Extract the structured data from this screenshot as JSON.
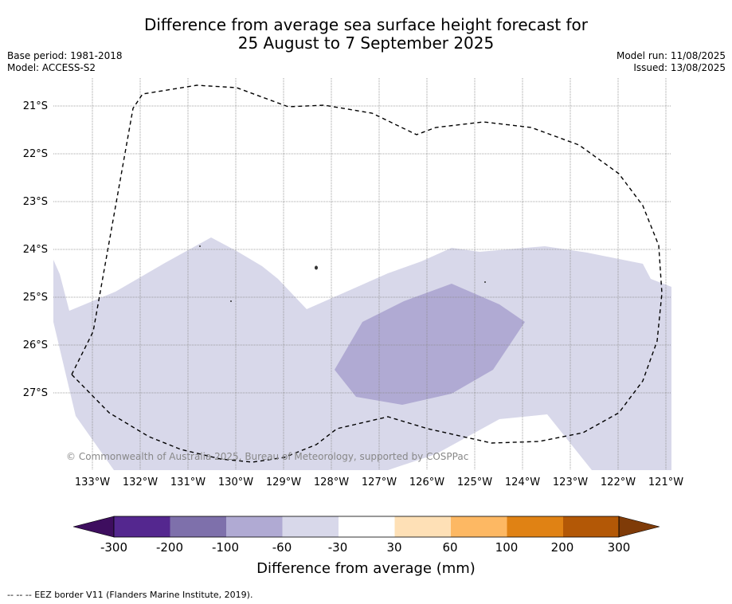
{
  "title": {
    "line1": "Difference from average sea surface height forecast for",
    "line2": "25 August to 7 September 2025"
  },
  "meta": {
    "base_period": "Base period: 1981-2018",
    "model": "Model: ACCESS-S2",
    "model_run": "Model run: 11/08/2025",
    "issued": "Issued: 13/08/2025"
  },
  "map": {
    "lat_labels": [
      "21°S",
      "22°S",
      "23°S",
      "24°S",
      "25°S",
      "26°S",
      "27°S"
    ],
    "lon_labels": [
      "133°W",
      "132°W",
      "131°W",
      "130°W",
      "129°W",
      "128°W",
      "127°W",
      "126°W",
      "125°W",
      "124°W",
      "123°W",
      "122°W",
      "121°W"
    ],
    "copyright": "© Commonwealth of Australia 2025, Bureau of Meteorology, supported by COSPPac",
    "colors": {
      "fill_-60_-30": "#d8d8ea",
      "fill_-100_-60": "#b0aad3",
      "eez_line": "#000000",
      "grid": "#888888"
    }
  },
  "colorbar": {
    "label": "Difference from average (mm)",
    "ticks": [
      "-300",
      "-200",
      "-100",
      "-60",
      "-30",
      "30",
      "60",
      "100",
      "200",
      "300"
    ],
    "colors": [
      "#3e0e5f",
      "#54278f",
      "#7e70ab",
      "#b0aad3",
      "#d8d8ea",
      "#ffffff",
      "#fee0b6",
      "#fdb863",
      "#e08214",
      "#b35806",
      "#7f3b08"
    ]
  },
  "footnote": "--  --  -- EEZ border V11 (Flanders Marine Institute, 2019)."
}
